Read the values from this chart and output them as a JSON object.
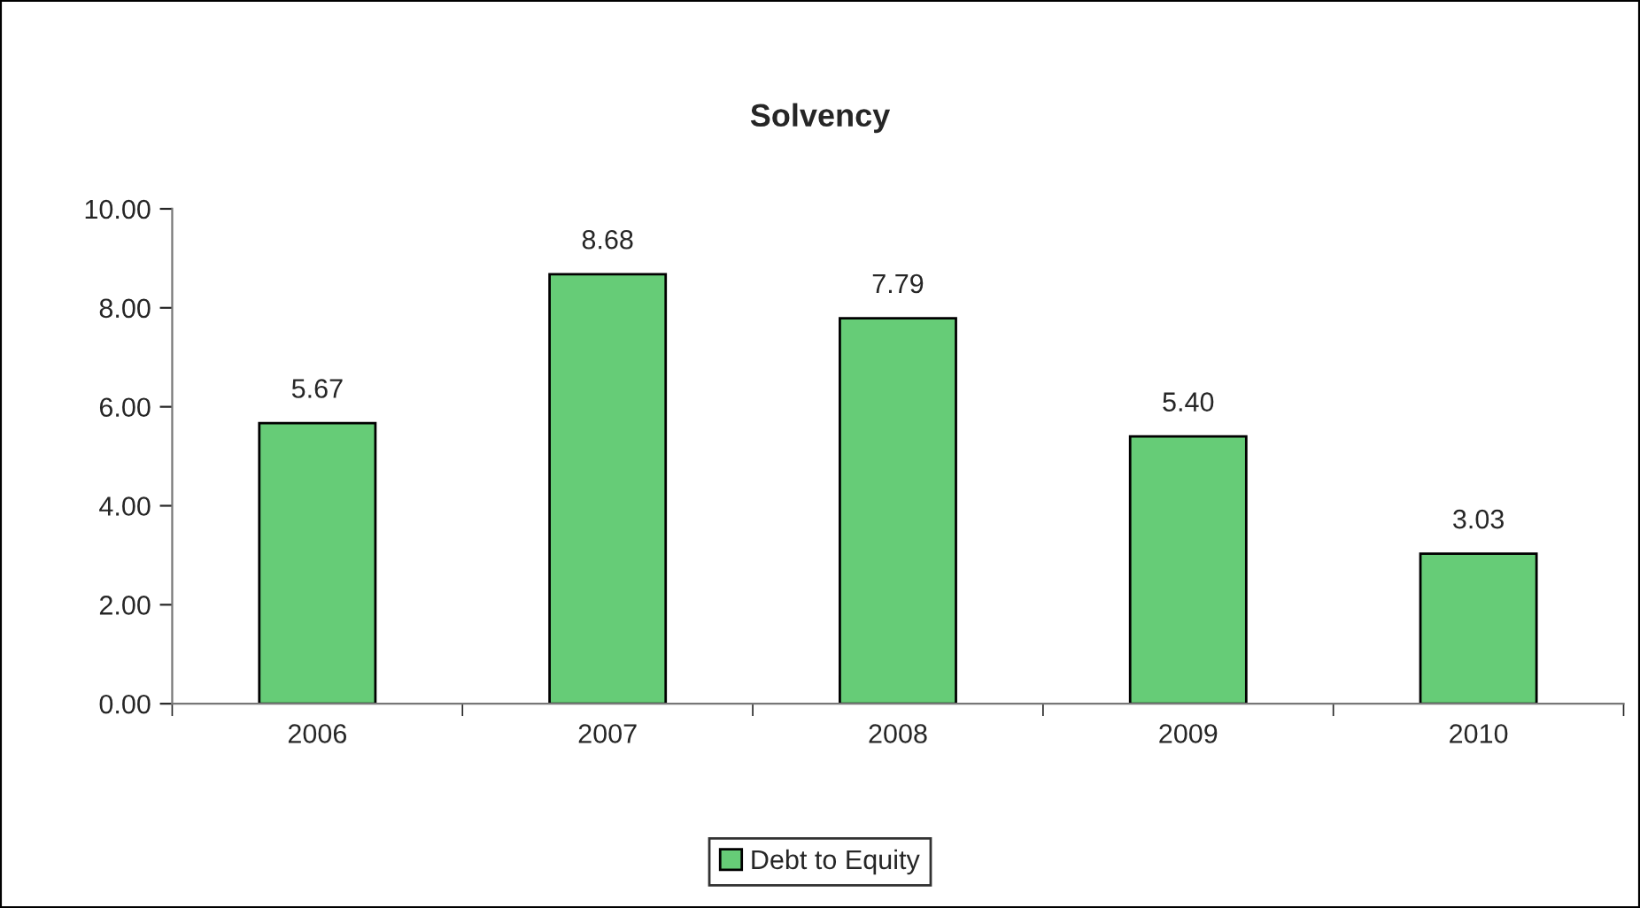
{
  "chart_data": {
    "type": "bar",
    "title": "Solvency",
    "categories": [
      "2006",
      "2007",
      "2008",
      "2009",
      "2010"
    ],
    "series": [
      {
        "name": "Debt to Equity",
        "color": "#66cc77",
        "values": [
          5.67,
          8.68,
          7.79,
          5.4,
          3.03
        ],
        "value_labels": [
          "5.67",
          "8.68",
          "7.79",
          "5.40",
          "3.03"
        ]
      }
    ],
    "ylim": [
      0,
      10
    ],
    "yticks": [
      {
        "value": 0,
        "label": "0.00"
      },
      {
        "value": 2,
        "label": "2.00"
      },
      {
        "value": 4,
        "label": "4.00"
      },
      {
        "value": 6,
        "label": "6.00"
      },
      {
        "value": 8,
        "label": "8.00"
      },
      {
        "value": 10,
        "label": "10.00"
      }
    ],
    "grid": false,
    "legend": "bottom"
  }
}
